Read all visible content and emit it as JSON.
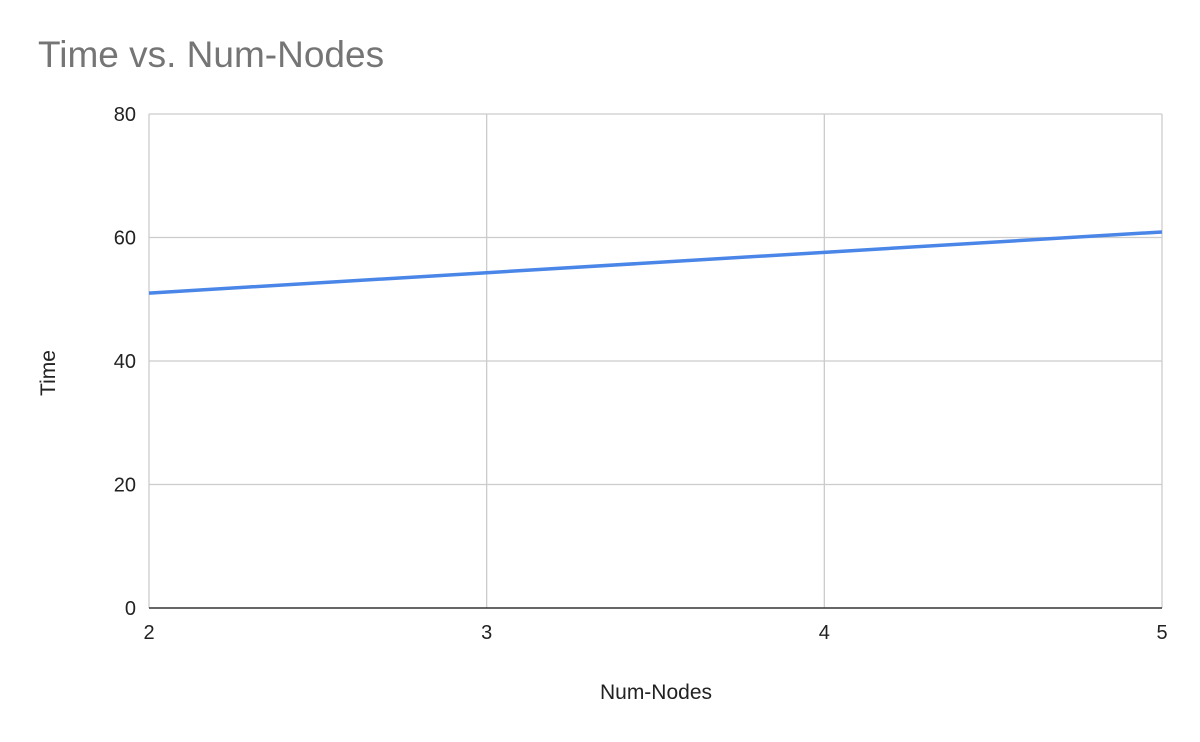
{
  "chart_data": {
    "type": "line",
    "title": "Time vs. Num-Nodes",
    "xlabel": "Num-Nodes",
    "ylabel": "Time",
    "x": [
      2,
      3,
      4,
      5
    ],
    "series": [
      {
        "values": [
          51,
          54.3,
          57.6,
          60.9
        ]
      }
    ],
    "xlim": [
      2,
      5
    ],
    "ylim": [
      0,
      80
    ],
    "xticks": [
      2,
      3,
      4,
      5
    ],
    "yticks": [
      0,
      20,
      40,
      60,
      80
    ],
    "grid": true,
    "line_color": "#4a86e8"
  }
}
